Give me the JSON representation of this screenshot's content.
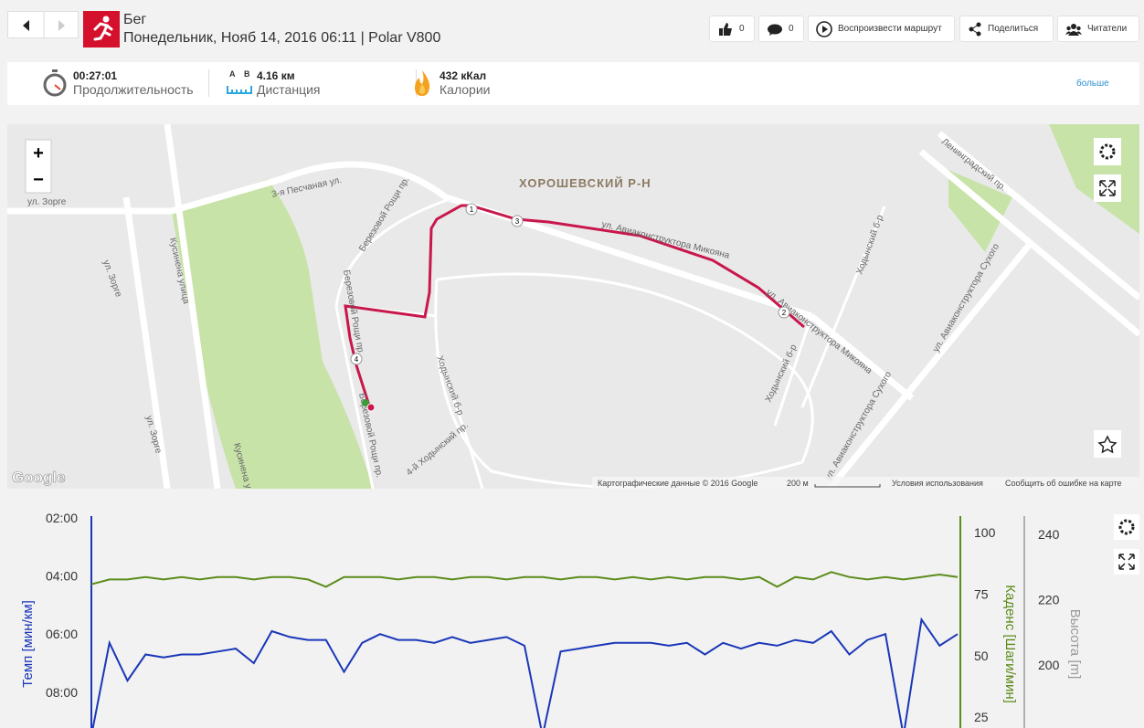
{
  "header": {
    "title": "Бег",
    "subtitle": "Понедельник, Нояб 14, 2016 06:11 | Polar V800",
    "buttons": {
      "likes": "0",
      "comments": "0",
      "play_route": "Воспроизвести маршрут",
      "share": "Поделиться",
      "readers": "Читатели"
    }
  },
  "summary": {
    "duration": {
      "value": "00:27:01",
      "label": "Продолжительность"
    },
    "distance": {
      "start": "A",
      "end": "B",
      "value": "4.16 км",
      "label": "Дистанция"
    },
    "calories": {
      "value": "432 кКал",
      "label": "Калории"
    },
    "more": "больше"
  },
  "map": {
    "zoom_in": "+",
    "zoom_out": "−",
    "labels": [
      "ул. Зорге",
      "3-я Песчаная ул.",
      "ХОРОШЕВСКИЙ Р-Н",
      "ул. Авиаконструктора Микояна",
      "ул. Авиаконструктора Микояна",
      "Березовой Рощи пр.",
      "Березовой Рощи пр.",
      "Березовой Рощи пр.",
      "Кусинена улица",
      "ул. Зорге",
      "ул. Зорге",
      "Кусинена ул.",
      "Ходынский б-р",
      "Ходынский б-р",
      "Ходынский б-р",
      "4-й Ходынский пр.",
      "Ленинградский пр.",
      "ул. Авиаконструктора Сухого",
      "ул. Авиаконструктора Сухого"
    ],
    "markers": [
      "1",
      "2",
      "3",
      "4"
    ],
    "attribution": {
      "logo": "Google",
      "data": "Картографические данные © 2016 Google",
      "scale": "200 м",
      "terms": "Условия использования",
      "report": "Сообщить об ошибке на карте"
    }
  },
  "chart_data": {
    "type": "line",
    "y_inverted": true,
    "ylabel": "Темп [мин/км]",
    "ylim": [
      2,
      9.2
    ],
    "yticks": [
      {
        "value": 2,
        "label": "02:00"
      },
      {
        "value": 4,
        "label": "04:00"
      },
      {
        "value": 6,
        "label": "06:00"
      },
      {
        "value": 8,
        "label": "08:00"
      }
    ],
    "y2label": "Каденс [Шаги/мин]",
    "y2lim": [
      21,
      106
    ],
    "y2ticks": [
      25,
      50,
      75,
      100
    ],
    "y3label": "Высота [m]",
    "y3lim": [
      181,
      245
    ],
    "y3ticks": [
      200,
      220,
      240
    ],
    "series": [
      {
        "name": "Темп",
        "color": "#1a37b8",
        "values": [
          9.5,
          6.3,
          7.6,
          6.7,
          6.8,
          6.7,
          6.7,
          6.6,
          6.5,
          7.0,
          5.9,
          6.1,
          6.2,
          6.2,
          7.3,
          6.3,
          6.0,
          6.2,
          6.2,
          6.3,
          6.1,
          6.3,
          6.2,
          6.1,
          6.4,
          9.5,
          6.6,
          6.5,
          6.4,
          6.3,
          6.3,
          6.3,
          6.4,
          6.3,
          6.7,
          6.3,
          6.5,
          6.3,
          6.4,
          6.2,
          6.3,
          5.9,
          6.7,
          6.2,
          6.0,
          9.5,
          5.5,
          6.4,
          6.0
        ]
      },
      {
        "name": "Каденс",
        "color": "#5b8c1a",
        "axis": "y2",
        "values": [
          79,
          81,
          81,
          82,
          81,
          82,
          81,
          82,
          82,
          81,
          82,
          82,
          81,
          78,
          82,
          82,
          82,
          81,
          82,
          82,
          81,
          82,
          82,
          81,
          82,
          82,
          81,
          82,
          82,
          81,
          82,
          81,
          82,
          81,
          82,
          82,
          81,
          82,
          78,
          82,
          81,
          84,
          82,
          81,
          82,
          81,
          82,
          83,
          82
        ]
      }
    ]
  }
}
